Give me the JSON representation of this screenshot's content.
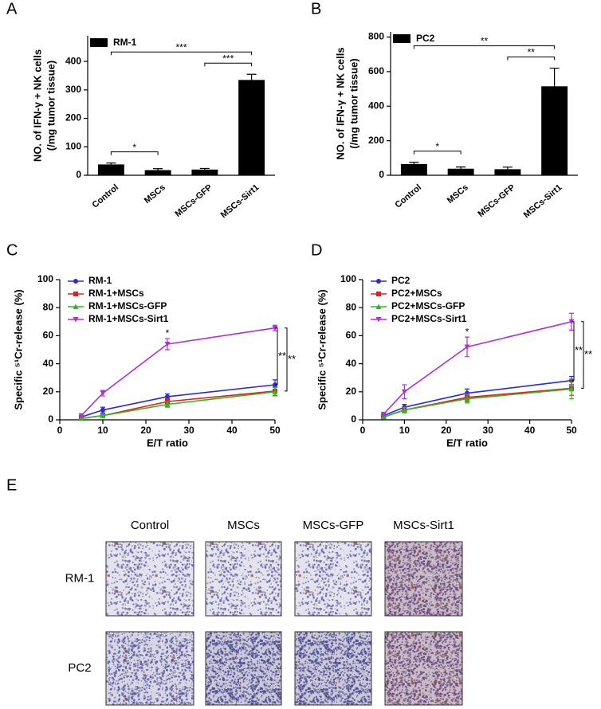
{
  "chart_data": [
    {
      "type": "bar",
      "panel": "A",
      "ylabel": [
        "NO. of IFN-γ + NK cells",
        "(/mg tumor tissue)"
      ],
      "categories": [
        "Control",
        "MSCs",
        "MSCs-GFP",
        "MSCs-Sirt1"
      ],
      "series": [
        {
          "name": "RM-1",
          "color": "#000000",
          "values": [
            38,
            18,
            20,
            335
          ],
          "errors": [
            5,
            5,
            4,
            20
          ]
        }
      ],
      "ylim": [
        0,
        490
      ],
      "yticks": [
        0,
        100,
        200,
        300,
        400
      ],
      "significance": [
        {
          "from": 0,
          "to": 1,
          "label": "*"
        },
        {
          "from": 2,
          "to": 3,
          "label": "***"
        },
        {
          "from": 0,
          "to": 3,
          "label": "***"
        }
      ]
    },
    {
      "type": "bar",
      "panel": "B",
      "ylabel": [
        "NO. of IFN-γ + NK cells",
        "(/mg tumor tissue)"
      ],
      "categories": [
        "Control",
        "MSCs",
        "MSCs-GFP",
        "MSCs-Sirt1"
      ],
      "series": [
        {
          "name": "PC2",
          "color": "#000000",
          "values": [
            65,
            38,
            35,
            515
          ],
          "errors": [
            10,
            10,
            12,
            105
          ]
        }
      ],
      "ylim": [
        0,
        830
      ],
      "yticks": [
        0,
        200,
        400,
        600,
        800
      ],
      "significance": [
        {
          "from": 0,
          "to": 1,
          "label": "*"
        },
        {
          "from": 2,
          "to": 3,
          "label": "**"
        },
        {
          "from": 0,
          "to": 3,
          "label": "**"
        }
      ]
    },
    {
      "type": "line",
      "panel": "C",
      "xlabel": "E/T ratio",
      "ylabel": "Specific ⁵¹Cr-release (%)",
      "x": [
        5,
        10,
        25,
        50
      ],
      "xlim": [
        0,
        50
      ],
      "xticks": [
        0,
        10,
        20,
        30,
        40,
        50
      ],
      "ylim": [
        0,
        100
      ],
      "yticks": [
        0,
        20,
        40,
        60,
        80,
        100
      ],
      "series": [
        {
          "name": "RM-1",
          "color": "#2a2ad8",
          "marker": "circle",
          "values": [
            2,
            7,
            16.5,
            25
          ],
          "errors": [
            1,
            2,
            2,
            3.5
          ]
        },
        {
          "name": "RM-1+MSCs",
          "color": "#e02020",
          "marker": "square",
          "values": [
            1,
            3,
            13,
            20.5
          ],
          "errors": [
            1,
            1,
            2,
            3
          ]
        },
        {
          "name": "RM-1+MSCs-GFP",
          "color": "#2db52d",
          "marker": "triangle-up",
          "values": [
            1,
            3,
            11,
            20
          ],
          "errors": [
            1,
            1,
            2,
            3
          ]
        },
        {
          "name": "RM-1+MSCs-Sirt1",
          "color": "#b030d8",
          "marker": "triangle-down",
          "values": [
            3,
            19,
            54,
            65.5
          ],
          "errors": [
            1,
            2,
            4,
            2
          ]
        }
      ],
      "point_marks": [
        {
          "series": 3,
          "index": 2,
          "label": "*"
        }
      ],
      "brackets": [
        {
          "from_series": 3,
          "to_series": 0,
          "index": 3,
          "label": "**"
        },
        {
          "from_series": 3,
          "to_series": 1,
          "index": 3,
          "label": "**"
        }
      ]
    },
    {
      "type": "line",
      "panel": "D",
      "xlabel": "E/T ratio",
      "ylabel": "Specific ⁵¹Cr-release (%)",
      "x": [
        5,
        10,
        25,
        50
      ],
      "xlim": [
        0,
        50
      ],
      "xticks": [
        0,
        10,
        20,
        30,
        40,
        50
      ],
      "ylim": [
        0,
        100
      ],
      "yticks": [
        0,
        20,
        40,
        60,
        80,
        100
      ],
      "series": [
        {
          "name": "PC2",
          "color": "#2a2ad8",
          "marker": "circle",
          "values": [
            3,
            9,
            19,
            28
          ],
          "errors": [
            1,
            2,
            3,
            3
          ]
        },
        {
          "name": "PC2+MSCs",
          "color": "#e02020",
          "marker": "square",
          "values": [
            2,
            7,
            16,
            22.5
          ],
          "errors": [
            1,
            2,
            3,
            5
          ]
        },
        {
          "name": "PC2+MSCs-GFP",
          "color": "#2db52d",
          "marker": "triangle-up",
          "values": [
            2,
            7,
            15,
            22
          ],
          "errors": [
            1,
            2,
            3,
            7
          ]
        },
        {
          "name": "PC2+MSCs-Sirt1",
          "color": "#b030d8",
          "marker": "triangle-down",
          "values": [
            4,
            20,
            52,
            70
          ],
          "errors": [
            1,
            5,
            7,
            6
          ]
        }
      ],
      "point_marks": [
        {
          "series": 3,
          "index": 2,
          "label": "*"
        }
      ],
      "brackets": [
        {
          "from_series": 3,
          "to_series": 0,
          "index": 3,
          "label": "**"
        },
        {
          "from_series": 3,
          "to_series": 1,
          "index": 3,
          "label": "**"
        }
      ]
    }
  ],
  "panel_e": {
    "panel": "E",
    "columns": [
      "Control",
      "MSCs",
      "MSCs-GFP",
      "MSCs-Sirt1"
    ],
    "rows": [
      "RM-1",
      "PC2"
    ]
  }
}
